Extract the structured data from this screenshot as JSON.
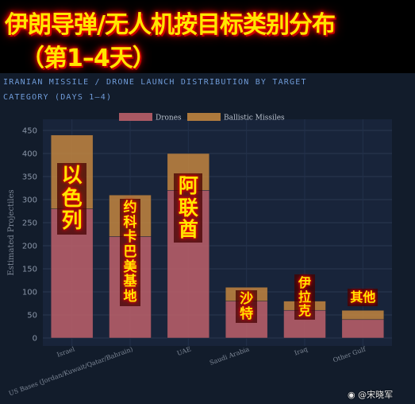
{
  "headline": {
    "line1": "伊朗导弹/无人机按目标类别分布",
    "line2": "（第1–4天）"
  },
  "subtitle": {
    "line1": "IRANIAN MISSILE / DRONE LAUNCH DISTRIBUTION BY TARGET",
    "line2": "CATEGORY (DAYS 1–4)"
  },
  "colors": {
    "drones": "#c4636c",
    "ballistic": "#c9893f",
    "panel_bg": "#121c2b",
    "overlay_text": "#ffe600"
  },
  "chart_data": {
    "type": "bar",
    "stacked": true,
    "categories": [
      "Israel",
      "US Bases (Jordan/Kuwait/Qatar/Bahrain)",
      "UAE",
      "Saudi Arabia",
      "Iraq",
      "Other Gulf"
    ],
    "series": [
      {
        "name": "Drones",
        "values": [
          280,
          220,
          320,
          80,
          60,
          40
        ]
      },
      {
        "name": "Ballistic Missiles",
        "values": [
          160,
          90,
          80,
          30,
          20,
          20
        ]
      }
    ],
    "xlabel": "",
    "ylabel": "Estimated Projectiles",
    "ylim": [
      0,
      450
    ],
    "yticks": [
      0,
      50,
      100,
      150,
      200,
      250,
      300,
      350,
      400,
      450
    ],
    "grid": true,
    "legend": "top-center"
  },
  "overlays": [
    {
      "text": "以色列",
      "size": 26
    },
    {
      "text": "约科卡巴美基地",
      "size": 17
    },
    {
      "text": "阿联酋",
      "size": 25
    },
    {
      "text": "沙特",
      "size": 17
    },
    {
      "text": "伊拉克",
      "size": 16
    },
    {
      "text": "其他",
      "size": 16
    }
  ],
  "watermark": "@宋晓军"
}
